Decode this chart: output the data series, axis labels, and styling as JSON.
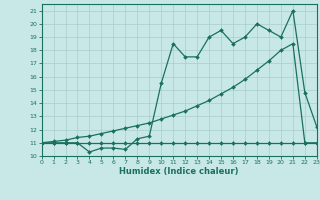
{
  "x": [
    0,
    1,
    2,
    3,
    4,
    5,
    6,
    7,
    8,
    9,
    10,
    11,
    12,
    13,
    14,
    15,
    16,
    17,
    18,
    19,
    20,
    21,
    22,
    23
  ],
  "y_flat": [
    11,
    11,
    11,
    11,
    11,
    11,
    11,
    11,
    11,
    11,
    11,
    11,
    11,
    11,
    11,
    11,
    11,
    11,
    11,
    11,
    11,
    11,
    11,
    11
  ],
  "y_trend": [
    11,
    11.1,
    11.2,
    11.4,
    11.5,
    11.7,
    11.9,
    12.1,
    12.3,
    12.5,
    12.8,
    13.1,
    13.4,
    13.8,
    14.2,
    14.7,
    15.2,
    15.8,
    16.5,
    17.2,
    18.0,
    18.5,
    11,
    11
  ],
  "y_noisy": [
    11,
    11,
    11,
    11,
    10.3,
    10.6,
    10.6,
    10.5,
    11.3,
    11.5,
    15.5,
    18.5,
    17.5,
    17.5,
    19.0,
    19.5,
    18.5,
    19.0,
    20.0,
    19.5,
    19.0,
    21.0,
    14.8,
    12.2
  ],
  "color": "#1a7060",
  "bg_color": "#c8e8e8",
  "grid_color": "#a8cccc",
  "xlabel": "Humidex (Indice chaleur)",
  "xlim": [
    0,
    23
  ],
  "ylim": [
    10,
    21.5
  ],
  "yticks": [
    10,
    11,
    12,
    13,
    14,
    15,
    16,
    17,
    18,
    19,
    20,
    21
  ],
  "xticks": [
    0,
    1,
    2,
    3,
    4,
    5,
    6,
    7,
    8,
    9,
    10,
    11,
    12,
    13,
    14,
    15,
    16,
    17,
    18,
    19,
    20,
    21,
    22,
    23
  ]
}
